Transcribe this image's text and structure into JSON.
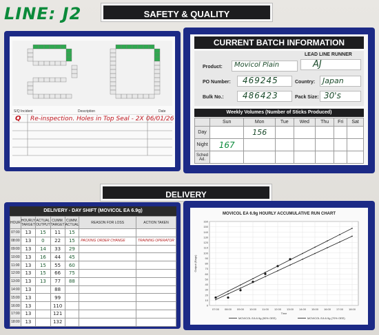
{
  "line_label": "LINE: J2",
  "safety_title": "SAFETY & QUALITY",
  "delivery_title": "DELIVERY",
  "sq_table": {
    "headers": [
      "S/Q Incident",
      "Description",
      "Date"
    ],
    "entry_marker": "Q",
    "entry_description": "Re-inspection. Holes in Top Seal - 2X",
    "entry_date": "06/01/26"
  },
  "batch": {
    "title": "CURRENT BATCH INFORMATION",
    "lead_line_runner_label": "LEAD LINE RUNNER",
    "lead_line_runner": "AJ",
    "product_label": "Product:",
    "product": "Movicol Plain",
    "po_label": "PO Number:",
    "po": "469245",
    "country_label": "Country:",
    "country": "Japan",
    "bulk_label": "Bulk No.:",
    "bulk": "486423",
    "pack_label": "Pack Size:",
    "pack": "30's",
    "weekly_title": "Weekly Volumes (Number of Sticks Produced)",
    "days": [
      "Sun",
      "Mon",
      "Tue",
      "Wed",
      "Thu",
      "Fri",
      "Sat"
    ],
    "rows": [
      "Day",
      "Night",
      "Sched Ad."
    ],
    "day_values": [
      "",
      "156",
      "",
      "",
      "",
      "",
      ""
    ],
    "night_values": [
      "167",
      "",
      "",
      "",
      "",
      "",
      ""
    ]
  },
  "delivery_table": {
    "title": "DELIVERY - DAY SHIFT (MOVICOL EA 6.9g)",
    "headers": [
      "HOUR",
      "HOURLY TARGET",
      "ACTUAL OUTPUT",
      "CUMM. TARGET",
      "CUMM. ACTUAL",
      "REASON FOR LOSS",
      "ACTION TAKEN"
    ],
    "rows": [
      [
        "07:00",
        "13",
        "15",
        "11",
        "15",
        "",
        ""
      ],
      [
        "08:00",
        "13",
        "0",
        "22",
        "15",
        "PACKING ORDER CHANGE",
        "TRAINING OPERATOR"
      ],
      [
        "09:00",
        "13",
        "14",
        "33",
        "29",
        "",
        ""
      ],
      [
        "10:00",
        "13",
        "16",
        "44",
        "45",
        "",
        ""
      ],
      [
        "11:00",
        "13",
        "15",
        "55",
        "60",
        "",
        ""
      ],
      [
        "12:00",
        "13",
        "15",
        "66",
        "75",
        "",
        ""
      ],
      [
        "13:00",
        "13",
        "13",
        "77",
        "88",
        "",
        ""
      ],
      [
        "14:00",
        "13",
        "",
        "88",
        "",
        "",
        ""
      ],
      [
        "15:00",
        "13",
        "",
        "99",
        "",
        "",
        ""
      ],
      [
        "16:00",
        "13",
        "",
        "110",
        "",
        "",
        ""
      ],
      [
        "17:00",
        "13",
        "",
        "121",
        "",
        "",
        ""
      ],
      [
        "18:00",
        "13",
        "",
        "132",
        "",
        "",
        ""
      ]
    ]
  },
  "chart_data": {
    "type": "line",
    "title": "MOVICOL EA 6.9g HOURLY ACCUMULATIVE RUN CHART",
    "xlabel": "Time",
    "ylabel": "Output (Bags)",
    "categories": [
      "07:00",
      "08:00",
      "09:00",
      "10:00",
      "11:00",
      "12:00",
      "13:00",
      "14:00",
      "15:00",
      "16:00",
      "17:00",
      "18:00"
    ],
    "ylim": [
      0,
      160
    ],
    "yticks": [
      0,
      10,
      20,
      30,
      40,
      50,
      60,
      70,
      80,
      90,
      100,
      110,
      120,
      130,
      140,
      150,
      160
    ],
    "series": [
      {
        "name": "MOVICOL EA 6.9g (90% OEE)",
        "values": [
          15,
          27,
          39,
          51,
          63,
          75,
          87,
          99,
          111,
          123,
          135,
          147
        ]
      },
      {
        "name": "MOVICOL EA 6.9g (70% OEE)",
        "values": [
          11,
          22,
          33,
          44,
          55,
          66,
          77,
          88,
          99,
          110,
          121,
          132
        ]
      }
    ],
    "actual_points": [
      15,
      15,
      29,
      45,
      60,
      75,
      88
    ],
    "colors": {
      "series1": "#1a1a1a",
      "series2": "#1a1a1a",
      "points": "#1a1a1a"
    }
  }
}
